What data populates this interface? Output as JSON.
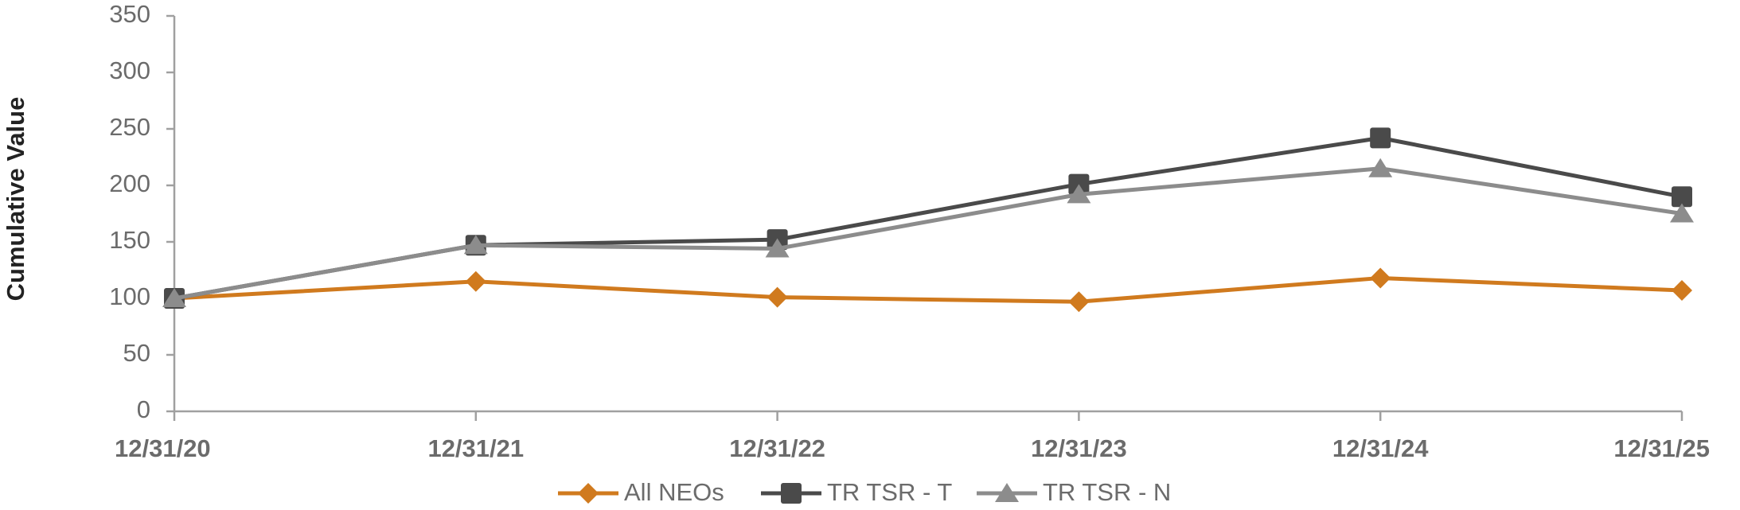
{
  "chart_data": {
    "type": "line",
    "y_label": "Cumulative Value",
    "categories": [
      "12/31/20",
      "12/31/21",
      "12/31/22",
      "12/31/23",
      "12/31/24",
      "12/31/25"
    ],
    "series": [
      {
        "name": "All NEOs",
        "color": "#d07a1e",
        "marker": "diamond",
        "values": [
          100,
          115,
          101,
          97,
          118,
          107
        ]
      },
      {
        "name": "TR TSR - T",
        "color": "#4a4a4a",
        "marker": "square",
        "values": [
          100,
          147,
          152,
          201,
          242,
          190
        ]
      },
      {
        "name": "TR TSR - N",
        "color": "#8c8c8c",
        "marker": "triangle",
        "values": [
          100,
          147,
          144,
          192,
          215,
          175
        ]
      }
    ],
    "ylim": [
      0,
      350
    ],
    "yticks": [
      0,
      50,
      100,
      150,
      200,
      250,
      300,
      350
    ],
    "grid": false,
    "legend": "bottom"
  }
}
